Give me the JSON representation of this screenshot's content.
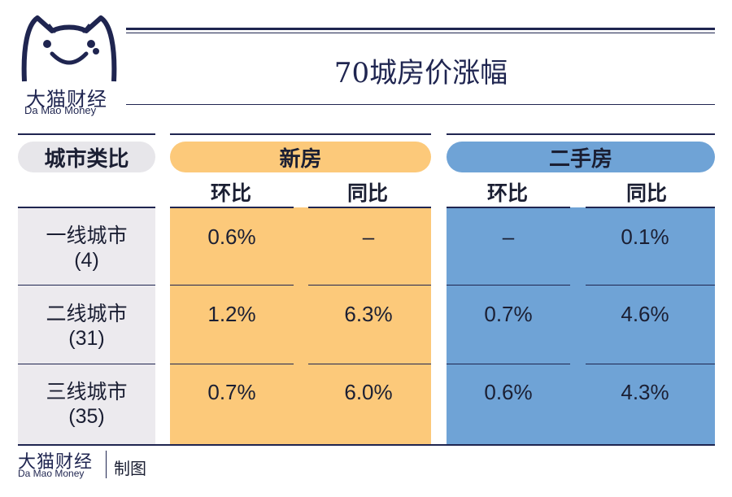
{
  "brand": {
    "name_cn": "大猫财经",
    "name_en": "Da Mao Money"
  },
  "title": "70城房价涨幅",
  "headers": {
    "category": "城市类比",
    "new_house": "新房",
    "second_hand": "二手房",
    "mom": "环比",
    "yoy": "同比"
  },
  "rows": [
    {
      "city": "一线城市",
      "count": "(4)",
      "new_mom": "0.6%",
      "new_yoy": "–",
      "sh_mom": "–",
      "sh_yoy": "0.1%"
    },
    {
      "city": "二线城市",
      "count": "(31)",
      "new_mom": "1.2%",
      "new_yoy": "6.3%",
      "sh_mom": "0.7%",
      "sh_yoy": "4.6%"
    },
    {
      "city": "三线城市",
      "count": "(35)",
      "new_mom": "0.7%",
      "new_yoy": "6.0%",
      "sh_mom": "0.6%",
      "sh_yoy": "4.3%"
    }
  ],
  "footer": {
    "note": "制图"
  },
  "colors": {
    "navy": "#1f2550",
    "new_house": "#fcc97a",
    "second_hand": "#6fa3d6",
    "category": "#eceaee"
  }
}
